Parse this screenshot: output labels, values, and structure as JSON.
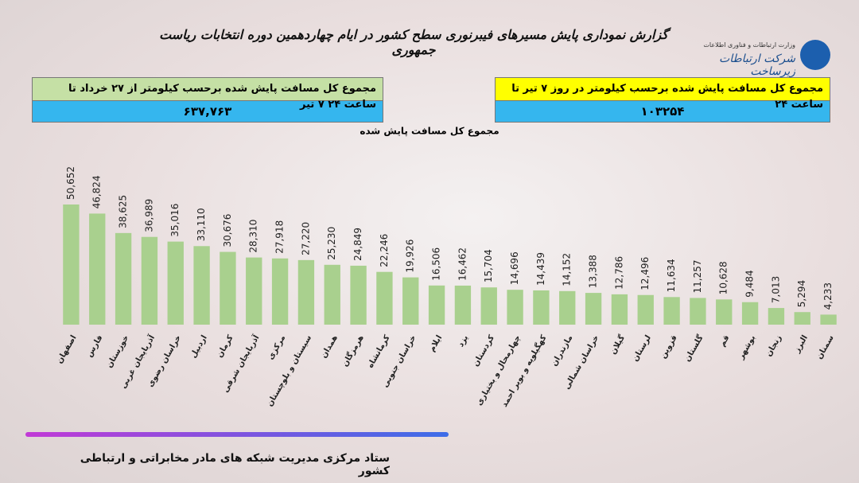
{
  "header": {
    "title": "گزارش نموداری پایش مسیرهای فیبرنوری سطح کشور در ایام چهاردهمین دوره انتخابات ریاست جمهوری",
    "ministry": "وزارت ارتباطات و فناوری اطلاعات",
    "company": "شرکت ارتباطات زیرساخت"
  },
  "summary": [
    {
      "label": "مجموع کل مسافت پایش شده برحسب کیلومتر از ۲۷ خرداد تا ساعت ۲۴ ۷ تیر",
      "value": "۶۳۷,۷۶۳"
    },
    {
      "label": "مجموع کل مسافت پایش شده  برحسب  کیلومتر در روز ۷ تیر تا ساعت  ۲۴",
      "value": "۱۰۳۲۵۴"
    }
  ],
  "chart_data": {
    "type": "bar",
    "title": "مجموع کل مسافت پایش شده",
    "color": "#a9d08e",
    "categories": [
      "اصفهان",
      "فارس",
      "خوزستان",
      "آذربایجان غربی",
      "خراسان رضوی",
      "اردبیل",
      "کرمان",
      "آذربایجان شرقی",
      "مرکزی",
      "سیستان و بلوچستان",
      "همدان",
      "هرمزگان",
      "کرمانشاه",
      "خراسان جنوبی",
      "ایلام",
      "یزد",
      "کردستان",
      "چهارمحال و بختیاری",
      "کهگیلویه و بویر احمد",
      "مازندران",
      "خراسان شمالی",
      "گیلان",
      "لرستان",
      "قزوین",
      "گلستان",
      "قم",
      "بوشهر",
      "زنجان",
      "البرز",
      "سمنان"
    ],
    "values": [
      50652,
      46824,
      38625,
      36989,
      35016,
      33110,
      30676,
      28310,
      27918,
      27220,
      25230,
      24849,
      22246,
      19926,
      16506,
      16462,
      15704,
      14696,
      14439,
      14152,
      13388,
      12786,
      12496,
      11634,
      11257,
      10628,
      9484,
      7013,
      5294,
      4233
    ],
    "value_labels": [
      "50,652",
      "46,824",
      "38,625",
      "36,989",
      "35,016",
      "33,110",
      "30,676",
      "28,310",
      "27,918",
      "27,220",
      "25,230",
      "24,849",
      "22,246",
      "19,926",
      "16,506",
      "16,462",
      "15,704",
      "14,696",
      "14,439",
      "14,152",
      "13,388",
      "12,786",
      "12,496",
      "11,634",
      "11,257",
      "10,628",
      "9,484",
      "7,013",
      "5,294",
      "4,233"
    ]
  },
  "footer": "ستاد مرکزی مدیریت شبکه های مادر مخابراتی و ارتباطی کشور"
}
